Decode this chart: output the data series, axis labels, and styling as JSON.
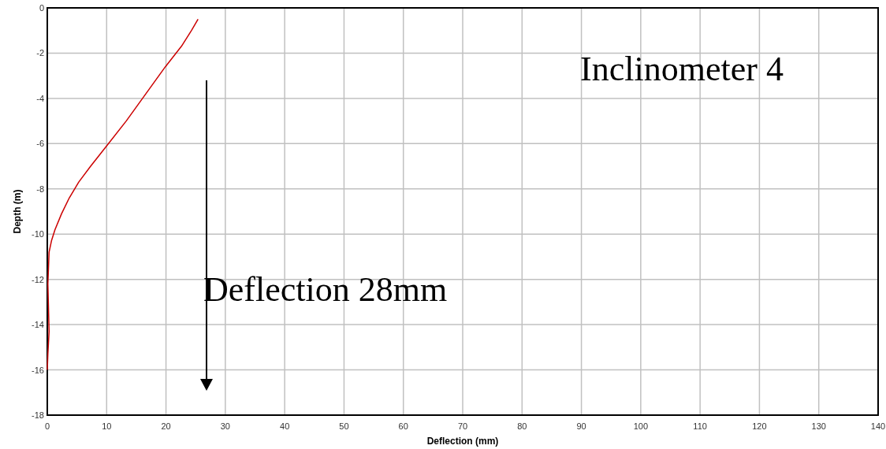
{
  "chart_data": {
    "type": "line",
    "xlabel": "Deflection (mm)",
    "ylabel": "Depth (m)",
    "xlim": [
      0,
      140
    ],
    "xticks": [
      0,
      10,
      20,
      30,
      40,
      50,
      60,
      70,
      80,
      90,
      100,
      110,
      120,
      130,
      140
    ],
    "ylim": [
      -18,
      0
    ],
    "yticks": [
      0,
      -2,
      -4,
      -6,
      -8,
      -10,
      -12,
      -14,
      -16,
      -18
    ],
    "grid": true,
    "series": [
      {
        "color": "#cc0000",
        "x": [
          25.4,
          24.3,
          22.6,
          19.9,
          16.6,
          13.3,
          10.0,
          7.3,
          5.3,
          3.7,
          2.4,
          1.3,
          0.7,
          0.3,
          0.1,
          0.3,
          0.1,
          0
        ],
        "values": [
          -0.5,
          -1.0,
          -1.7,
          -2.6,
          -3.8,
          -5.0,
          -6.1,
          -7.0,
          -7.7,
          -8.4,
          -9.1,
          -9.8,
          -10.3,
          -10.8,
          -12.2,
          -14.3,
          -15.3,
          -16.0
        ]
      }
    ],
    "annotations": [
      "Inclinometer 4",
      "Deflection 28mm"
    ]
  }
}
